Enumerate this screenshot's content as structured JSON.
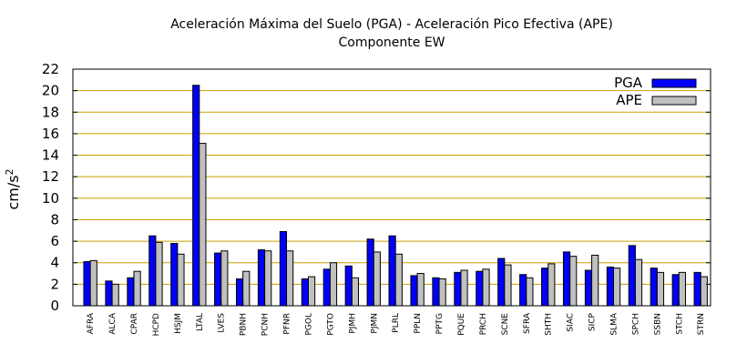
{
  "chart_data": {
    "type": "bar",
    "title_line1": "Aceleración Máxima del Suelo (PGA) -  Aceleración Pico Efectiva (APE)",
    "title_line2": "Componente EW",
    "ylabel": "cm/s",
    "ylabel_sup": "2",
    "xlabel": "",
    "ylim": [
      0,
      22
    ],
    "yticks": [
      0,
      2,
      4,
      6,
      8,
      10,
      12,
      14,
      16,
      18,
      20,
      22
    ],
    "grid": "horizontal",
    "legend_position": "top-right",
    "categories": [
      "AFRA",
      "ALCA",
      "CPAR",
      "HCPD",
      "HSJM",
      "LTAL",
      "LVES",
      "PBNH",
      "PCNH",
      "PFNR",
      "PGOL",
      "PGTO",
      "PJMH",
      "PJMN",
      "PLRL",
      "PPLN",
      "PPTG",
      "PQUE",
      "PRCH",
      "SCNE",
      "SFRA",
      "SHTH",
      "SIAC",
      "SICP",
      "SLMA",
      "SPCH",
      "SSBN",
      "STCH",
      "STRN"
    ],
    "series": [
      {
        "name": "PGA",
        "color": "#0000ff",
        "values": [
          4.1,
          2.3,
          2.6,
          6.5,
          5.8,
          20.5,
          4.9,
          2.5,
          5.2,
          6.9,
          2.5,
          3.4,
          3.7,
          6.2,
          6.5,
          2.8,
          2.6,
          3.1,
          3.2,
          4.4,
          2.9,
          3.5,
          5.0,
          3.3,
          3.6,
          5.6,
          3.5,
          2.9,
          3.1
        ]
      },
      {
        "name": "APE",
        "color": "#c0c0c0",
        "values": [
          4.2,
          2.0,
          3.2,
          5.9,
          4.8,
          15.1,
          5.1,
          3.2,
          5.1,
          5.1,
          2.7,
          4.0,
          2.6,
          5.0,
          4.8,
          3.0,
          2.5,
          3.3,
          3.4,
          3.8,
          2.6,
          3.9,
          4.6,
          4.7,
          3.5,
          4.3,
          3.1,
          3.1,
          2.7
        ]
      }
    ]
  }
}
